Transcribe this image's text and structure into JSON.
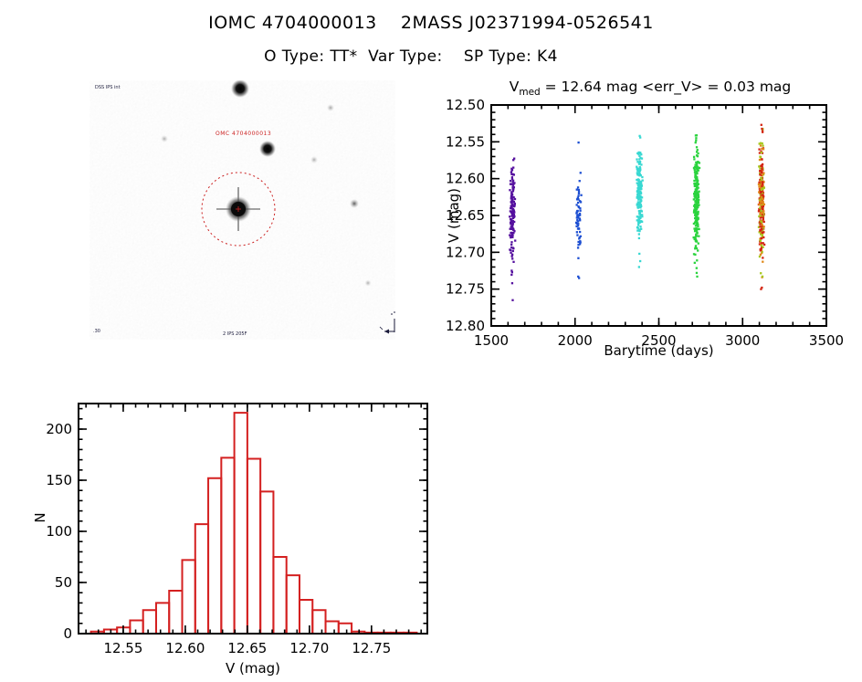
{
  "page": {
    "title": "IOMC 4704000013    2MASS J02371994-0526541",
    "subtitle": "O Type: TT*  Var Type:    SP Type: K4"
  },
  "finder_chart": {
    "target_label": "OMC 4704000013",
    "corner_top_left": "DSS IPS int",
    "corner_bottom_left": ".30",
    "corner_bottom_center": "2 IPS 205F",
    "circle_color": "#cc2222",
    "annotation_color": "#1a1a3a"
  },
  "chart_data": [
    {
      "id": "lightcurve",
      "type": "scatter",
      "title_prefix": "V",
      "title_sub": "med",
      "title_rest": " = 12.64 mag <err_V> = 0.03 mag",
      "xlabel": "Barytime (days)",
      "ylabel": "V (mag)",
      "xlim": [
        1500,
        3500
      ],
      "ylim_top": 12.5,
      "ylim_bottom": 12.8,
      "xticks": [
        1500,
        2000,
        2500,
        3000,
        3500
      ],
      "xtick_minor_step": 100,
      "yticks": [
        "12.50",
        "12.55",
        "12.60",
        "12.65",
        "12.70",
        "12.75",
        "12.80"
      ],
      "ytick_minor_step": 0.01,
      "grid": false,
      "clusters": [
        {
          "name": "epoch-1",
          "barytime": 1625,
          "colors": [
            "#55109e"
          ],
          "count": 150,
          "v_core": [
            12.578,
            12.712
          ],
          "v_full": [
            12.558,
            12.748
          ],
          "extra_points": [
            [
              1628,
              12.765
            ],
            [
              1625,
              12.742
            ],
            [
              1622,
              12.725
            ]
          ]
        },
        {
          "name": "epoch-2",
          "barytime": 2020,
          "colors": [
            "#1d4fd2"
          ],
          "count": 60,
          "v_core": [
            12.608,
            12.695
          ],
          "v_full": [
            12.585,
            12.7
          ],
          "extra_points": [
            [
              2021,
              12.551
            ],
            [
              2018,
              12.612
            ],
            [
              2020,
              12.708
            ],
            [
              2024,
              12.735
            ],
            [
              2019,
              12.733
            ]
          ]
        },
        {
          "name": "epoch-3",
          "barytime": 2385,
          "colors": [
            "#38d8d2"
          ],
          "count": 175,
          "v_core": [
            12.557,
            12.678
          ],
          "v_full": [
            12.539,
            12.688
          ],
          "extra_points": [
            [
              2384,
              12.702
            ],
            [
              2389,
              12.712
            ],
            [
              2382,
              12.72
            ],
            [
              2386,
              12.542
            ]
          ]
        },
        {
          "name": "epoch-4",
          "barytime": 2725,
          "colors": [
            "#2bd33e"
          ],
          "count": 240,
          "v_core": [
            12.558,
            12.702
          ],
          "v_full": [
            12.541,
            12.722
          ],
          "extra_points": [
            [
              2726,
              12.728
            ],
            [
              2729,
              12.733
            ],
            [
              2723,
              12.545
            ]
          ]
        },
        {
          "name": "epoch-5",
          "barytime": 3113,
          "colors": [
            "#d42512",
            "#e0891a",
            "#a6c81e"
          ],
          "count": 280,
          "v_core": [
            12.548,
            12.708
          ],
          "v_full": [
            12.528,
            12.735
          ],
          "extra_points": [
            [
              3112,
              12.527
            ],
            [
              3115,
              12.748
            ],
            [
              3110,
              12.75
            ]
          ]
        }
      ]
    },
    {
      "id": "v-histogram",
      "type": "bar",
      "xlabel": "V (mag)",
      "ylabel": "N",
      "bins_start": 12.524,
      "bin_width": 0.0105,
      "values": [
        2,
        4,
        6,
        13,
        23,
        30,
        42,
        72,
        107,
        152,
        172,
        216,
        171,
        139,
        75,
        57,
        33,
        23,
        12,
        10,
        2,
        1,
        1,
        1,
        1
      ],
      "xlim": [
        12.514,
        12.795
      ],
      "ylim": [
        0,
        225
      ],
      "xticks": [
        "12.55",
        "12.60",
        "12.65",
        "12.70",
        "12.75"
      ],
      "xtick_minor_step": 0.01,
      "yticks": [
        0,
        50,
        100,
        150,
        200
      ],
      "ytick_minor_step": 10,
      "bar_color": "#d42020",
      "bar_fill": "#ffffff",
      "grid": false
    }
  ]
}
